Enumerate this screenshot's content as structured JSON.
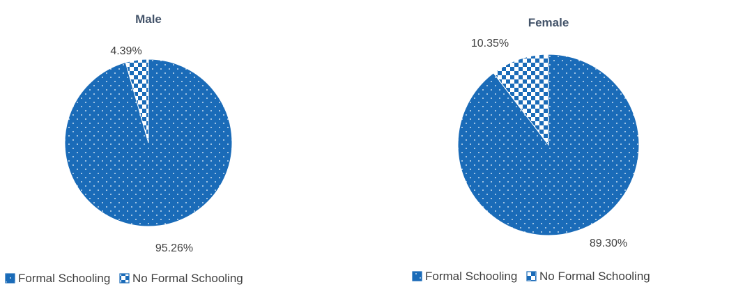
{
  "colors": {
    "formal": "#1a6bb8",
    "no_formal_bg": "#ffffff",
    "title": "#44546a",
    "label": "#404040",
    "legend_text": "#404040"
  },
  "legend": [
    "Formal Schooling",
    "No Formal Schooling"
  ],
  "chart_data": [
    {
      "type": "pie",
      "title": "Male",
      "categories": [
        "Formal Schooling",
        "No Formal Schooling"
      ],
      "values": [
        95.26,
        4.39
      ],
      "data_labels": [
        "95.26%",
        "4.39%"
      ]
    },
    {
      "type": "pie",
      "title": "Female",
      "categories": [
        "Formal Schooling",
        "No Formal Schooling"
      ],
      "values": [
        89.3,
        10.35
      ],
      "data_labels": [
        "89.30%",
        "10.35%"
      ]
    }
  ]
}
